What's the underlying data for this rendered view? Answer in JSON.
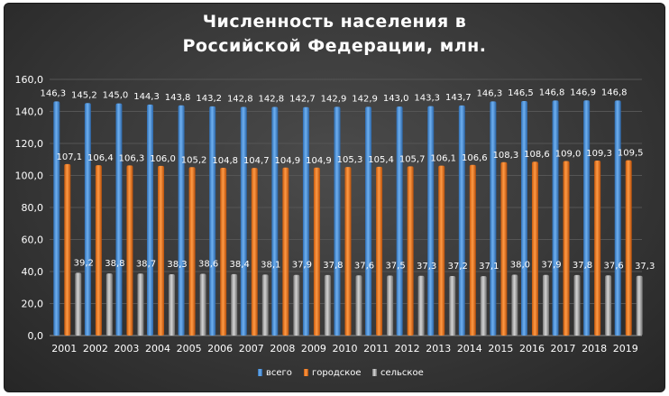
{
  "chart_data": {
    "type": "bar",
    "title_lines": [
      "Численность населения в",
      "Российской Федерации, млн."
    ],
    "title": "Численность населения в Российской Федерации, млн.",
    "xlabel": "",
    "ylabel": "",
    "ylim": [
      0,
      160
    ],
    "yticks": [
      "0,0",
      "20,0",
      "40,0",
      "60,0",
      "80,0",
      "100,0",
      "120,0",
      "140,0",
      "160,0"
    ],
    "ytick_values": [
      0,
      20,
      40,
      60,
      80,
      100,
      120,
      140,
      160
    ],
    "grid": true,
    "legend_position": "bottom",
    "categories": [
      "2001",
      "2002",
      "2003",
      "2004",
      "2005",
      "2006",
      "2007",
      "2008",
      "2009",
      "2010",
      "2011",
      "2012",
      "2013",
      "2014",
      "2015",
      "2016",
      "2017",
      "2018",
      "2019"
    ],
    "series": [
      {
        "name": "всего",
        "color": "#4a90d9",
        "values": [
          146.3,
          145.2,
          145.0,
          144.3,
          143.8,
          143.2,
          142.8,
          142.8,
          142.7,
          142.9,
          142.9,
          143.0,
          143.3,
          143.7,
          146.3,
          146.5,
          146.8,
          146.9,
          146.8
        ],
        "labels": [
          "146,3",
          "145,2",
          "145,0",
          "144,3",
          "143,8",
          "143,2",
          "142,8",
          "142,8",
          "142,7",
          "142,9",
          "142,9",
          "143,0",
          "143,3",
          "143,7",
          "146,3",
          "146,5",
          "146,8",
          "146,9",
          "146,8"
        ]
      },
      {
        "name": "городское",
        "color": "#f07d22",
        "values": [
          107.1,
          106.4,
          106.3,
          106.0,
          105.2,
          104.8,
          104.7,
          104.9,
          104.9,
          105.3,
          105.4,
          105.7,
          106.1,
          106.6,
          108.3,
          108.6,
          109.0,
          109.3,
          109.5
        ],
        "labels": [
          "107,1",
          "106,4",
          "106,3",
          "106,0",
          "105,2",
          "104,8",
          "104,7",
          "104,9",
          "104,9",
          "105,3",
          "105,4",
          "105,7",
          "106,1",
          "106,6",
          "108,3",
          "108,6",
          "109,0",
          "109,3",
          "109,5"
        ]
      },
      {
        "name": "сельское",
        "color": "#a9a9a9",
        "values": [
          39.2,
          38.8,
          38.7,
          38.3,
          38.6,
          38.4,
          38.1,
          37.9,
          37.8,
          37.6,
          37.5,
          37.3,
          37.2,
          37.1,
          38.0,
          37.9,
          37.8,
          37.6,
          37.3
        ],
        "labels": [
          "39,2",
          "38,8",
          "38,7",
          "38,3",
          "38,6",
          "38,4",
          "38,1",
          "37,9",
          "37,8",
          "37,6",
          "37,5",
          "37,3",
          "37,2",
          "37,1",
          "38,0",
          "37,9",
          "37,8",
          "37,6",
          "37,3"
        ]
      }
    ]
  }
}
